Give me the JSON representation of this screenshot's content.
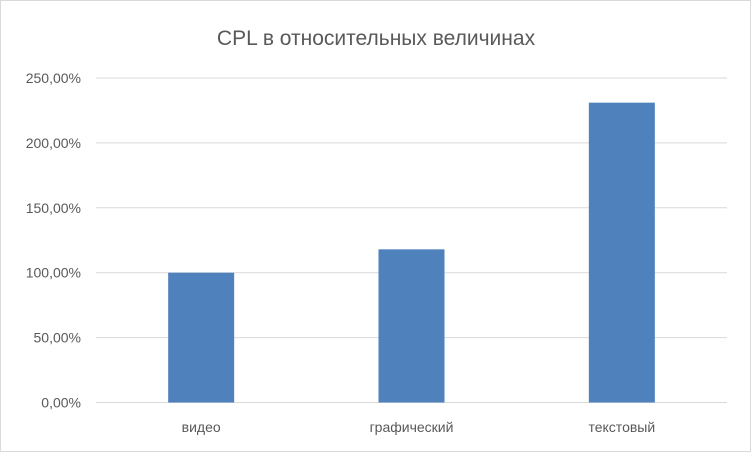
{
  "chart_data": {
    "type": "bar",
    "title": "CPL в относительных величинах",
    "categories": [
      "видео",
      "графический",
      "текстовый"
    ],
    "values": [
      100,
      118,
      231
    ],
    "unit": "%",
    "ylim": [
      0,
      250
    ],
    "yticks": [
      "0,00%",
      "50,00%",
      "100,00%",
      "150,00%",
      "200,00%",
      "250,00%"
    ],
    "grid": true,
    "legend": "none",
    "colors": {
      "bar": "#4f81bd",
      "grid": "#d9d9d9",
      "text": "#595959"
    }
  }
}
